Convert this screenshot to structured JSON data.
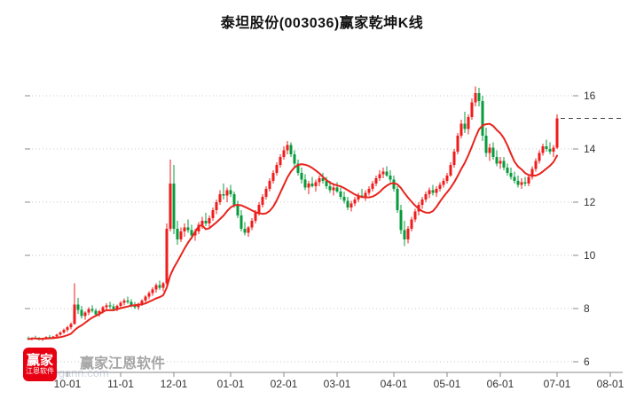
{
  "title": "泰坦股份(003036)赢家乾坤K线",
  "watermark": {
    "brand": "赢家江恩软件",
    "logo_line1": "赢家",
    "logo_line2": "江恩软件",
    "faint_text": "550gann.com"
  },
  "chart_data": {
    "type": "candlestick",
    "title": "泰坦股份(003036)赢家乾坤K线",
    "x_labels": [
      "10-01",
      "11-01",
      "12-01",
      "01-01",
      "02-01",
      "03-01",
      "04-01",
      "05-01",
      "06-01",
      "07-01",
      "08-01"
    ],
    "x_label_indices": [
      11,
      26,
      41,
      57,
      72,
      87,
      103,
      118,
      133,
      149,
      164
    ],
    "y_ticks": [
      6,
      8,
      10,
      12,
      14,
      16
    ],
    "ylim": [
      6,
      16
    ],
    "grid": true,
    "ref_line": 15.15,
    "ma_window": 10,
    "colors": {
      "up": "#f01b1b",
      "down": "#079b3c",
      "ma": "#e8241d",
      "grid": "#c8c8c8",
      "axis": "#8a8a8a",
      "ref": "#444444",
      "label": "#333333"
    },
    "candles": [
      [
        6.88,
        6.95,
        6.82,
        6.85
      ],
      [
        6.85,
        6.92,
        6.8,
        6.9
      ],
      [
        6.9,
        6.98,
        6.85,
        6.87
      ],
      [
        6.87,
        6.93,
        6.81,
        6.83
      ],
      [
        6.83,
        6.9,
        6.78,
        6.88
      ],
      [
        6.88,
        6.96,
        6.84,
        6.93
      ],
      [
        6.93,
        7.0,
        6.88,
        6.9
      ],
      [
        6.9,
        6.97,
        6.85,
        6.95
      ],
      [
        6.95,
        7.05,
        6.9,
        7.02
      ],
      [
        7.02,
        7.15,
        6.98,
        7.1
      ],
      [
        7.1,
        7.25,
        7.05,
        7.2
      ],
      [
        7.2,
        7.35,
        7.12,
        7.3
      ],
      [
        7.3,
        7.48,
        7.22,
        7.42
      ],
      [
        7.42,
        8.95,
        7.4,
        8.15
      ],
      [
        8.15,
        8.4,
        7.8,
        7.95
      ],
      [
        7.95,
        8.1,
        7.62,
        7.72
      ],
      [
        7.72,
        7.9,
        7.58,
        7.85
      ],
      [
        7.85,
        8.05,
        7.75,
        7.98
      ],
      [
        7.98,
        8.12,
        7.85,
        7.92
      ],
      [
        7.92,
        8.0,
        7.7,
        7.78
      ],
      [
        7.78,
        7.95,
        7.7,
        7.9
      ],
      [
        7.9,
        8.1,
        7.82,
        8.05
      ],
      [
        8.05,
        8.2,
        7.95,
        8.12
      ],
      [
        8.12,
        8.25,
        8.0,
        8.08
      ],
      [
        8.08,
        8.18,
        7.92,
        7.98
      ],
      [
        7.98,
        8.15,
        7.9,
        8.1
      ],
      [
        8.1,
        8.28,
        8.02,
        8.22
      ],
      [
        8.22,
        8.38,
        8.12,
        8.3
      ],
      [
        8.3,
        8.45,
        8.18,
        8.25
      ],
      [
        8.25,
        8.35,
        8.05,
        8.12
      ],
      [
        8.12,
        8.25,
        7.98,
        8.05
      ],
      [
        8.05,
        8.22,
        7.95,
        8.18
      ],
      [
        8.18,
        8.35,
        8.1,
        8.3
      ],
      [
        8.3,
        8.5,
        8.22,
        8.45
      ],
      [
        8.45,
        8.65,
        8.35,
        8.58
      ],
      [
        8.58,
        8.8,
        8.48,
        8.72
      ],
      [
        8.72,
        8.95,
        8.6,
        8.88
      ],
      [
        8.88,
        9.05,
        8.7,
        8.78
      ],
      [
        8.78,
        9.0,
        8.65,
        8.95
      ],
      [
        8.95,
        11.2,
        8.85,
        11.0
      ],
      [
        11.0,
        13.6,
        10.9,
        12.7
      ],
      [
        12.7,
        13.4,
        10.8,
        11.0
      ],
      [
        11.0,
        11.3,
        10.4,
        10.6
      ],
      [
        10.6,
        11.05,
        10.5,
        10.9
      ],
      [
        10.9,
        11.2,
        10.7,
        11.05
      ],
      [
        11.05,
        11.35,
        10.85,
        10.95
      ],
      [
        10.95,
        11.15,
        10.6,
        10.75
      ],
      [
        10.75,
        11.0,
        10.55,
        10.9
      ],
      [
        10.9,
        11.25,
        10.8,
        11.15
      ],
      [
        11.15,
        11.45,
        11.0,
        11.3
      ],
      [
        11.3,
        11.6,
        11.1,
        11.2
      ],
      [
        11.2,
        11.5,
        11.05,
        11.4
      ],
      [
        11.4,
        11.8,
        11.3,
        11.7
      ],
      [
        11.7,
        12.1,
        11.55,
        12.0
      ],
      [
        12.0,
        12.45,
        11.9,
        12.3
      ],
      [
        12.3,
        12.7,
        12.1,
        12.25
      ],
      [
        12.25,
        12.55,
        12.0,
        12.45
      ],
      [
        12.45,
        12.65,
        12.2,
        12.3
      ],
      [
        12.3,
        12.4,
        11.8,
        11.9
      ],
      [
        11.9,
        12.05,
        11.4,
        11.5
      ],
      [
        11.5,
        11.7,
        10.9,
        11.0
      ],
      [
        11.0,
        11.25,
        10.75,
        10.85
      ],
      [
        10.85,
        11.1,
        10.7,
        11.05
      ],
      [
        11.05,
        11.4,
        10.95,
        11.3
      ],
      [
        11.3,
        11.7,
        11.2,
        11.6
      ],
      [
        11.6,
        12.0,
        11.5,
        11.9
      ],
      [
        11.9,
        12.3,
        11.8,
        12.2
      ],
      [
        12.2,
        12.6,
        12.1,
        12.5
      ],
      [
        12.5,
        12.9,
        12.4,
        12.8
      ],
      [
        12.8,
        13.2,
        12.7,
        13.1
      ],
      [
        13.1,
        13.5,
        13.0,
        13.4
      ],
      [
        13.4,
        13.8,
        13.3,
        13.7
      ],
      [
        13.7,
        14.1,
        13.6,
        13.95
      ],
      [
        13.95,
        14.3,
        13.8,
        14.15
      ],
      [
        14.15,
        14.25,
        13.7,
        13.8
      ],
      [
        13.8,
        13.95,
        13.3,
        13.45
      ],
      [
        13.45,
        13.6,
        13.0,
        13.1
      ],
      [
        13.1,
        13.3,
        12.7,
        12.85
      ],
      [
        12.85,
        13.05,
        12.45,
        12.55
      ],
      [
        12.55,
        12.8,
        12.3,
        12.7
      ],
      [
        12.7,
        12.95,
        12.55,
        12.6
      ],
      [
        12.6,
        12.85,
        12.4,
        12.75
      ],
      [
        12.75,
        13.0,
        12.6,
        12.9
      ],
      [
        12.9,
        13.1,
        12.7,
        12.8
      ],
      [
        12.8,
        12.95,
        12.5,
        12.6
      ],
      [
        12.6,
        12.8,
        12.35,
        12.45
      ],
      [
        12.45,
        12.65,
        12.25,
        12.55
      ],
      [
        12.55,
        12.75,
        12.35,
        12.4
      ],
      [
        12.4,
        12.55,
        12.1,
        12.2
      ],
      [
        12.2,
        12.4,
        11.95,
        12.05
      ],
      [
        12.05,
        12.2,
        11.7,
        11.8
      ],
      [
        11.8,
        12.05,
        11.65,
        11.95
      ],
      [
        11.95,
        12.2,
        11.85,
        12.1
      ],
      [
        12.1,
        12.35,
        12.0,
        12.25
      ],
      [
        12.25,
        12.5,
        12.15,
        12.2
      ],
      [
        12.2,
        12.45,
        12.05,
        12.35
      ],
      [
        12.35,
        12.6,
        12.25,
        12.5
      ],
      [
        12.5,
        12.8,
        12.4,
        12.7
      ],
      [
        12.7,
        13.0,
        12.6,
        12.9
      ],
      [
        12.9,
        13.2,
        12.8,
        13.05
      ],
      [
        13.05,
        13.3,
        12.9,
        13.15
      ],
      [
        13.15,
        13.35,
        12.95,
        13.0
      ],
      [
        13.0,
        13.2,
        12.75,
        12.85
      ],
      [
        12.85,
        13.0,
        12.4,
        12.5
      ],
      [
        12.5,
        12.6,
        11.6,
        11.7
      ],
      [
        11.7,
        11.9,
        10.8,
        10.95
      ],
      [
        10.95,
        11.3,
        10.35,
        10.6
      ],
      [
        10.6,
        11.1,
        10.45,
        11.0
      ],
      [
        11.0,
        11.45,
        10.9,
        11.35
      ],
      [
        11.35,
        11.75,
        11.25,
        11.65
      ],
      [
        11.65,
        12.0,
        11.5,
        11.9
      ],
      [
        11.9,
        12.2,
        11.75,
        12.1
      ],
      [
        12.1,
        12.4,
        12.0,
        12.3
      ],
      [
        12.3,
        12.55,
        12.15,
        12.45
      ],
      [
        12.45,
        12.65,
        12.25,
        12.35
      ],
      [
        12.35,
        12.6,
        12.2,
        12.5
      ],
      [
        12.5,
        12.75,
        12.4,
        12.65
      ],
      [
        12.65,
        12.9,
        12.55,
        12.8
      ],
      [
        12.8,
        13.1,
        12.7,
        13.0
      ],
      [
        13.0,
        13.5,
        12.95,
        13.4
      ],
      [
        13.4,
        14.0,
        13.3,
        13.9
      ],
      [
        13.9,
        14.6,
        13.8,
        14.5
      ],
      [
        14.5,
        15.1,
        14.4,
        14.95
      ],
      [
        14.95,
        15.4,
        14.6,
        14.75
      ],
      [
        14.75,
        15.3,
        14.55,
        15.2
      ],
      [
        15.2,
        15.9,
        15.1,
        15.75
      ],
      [
        15.75,
        16.35,
        15.6,
        16.1
      ],
      [
        16.1,
        16.3,
        15.6,
        15.8
      ],
      [
        15.8,
        16.0,
        14.3,
        14.5
      ],
      [
        14.5,
        14.8,
        13.7,
        13.85
      ],
      [
        13.85,
        14.2,
        13.55,
        14.05
      ],
      [
        14.05,
        14.25,
        13.6,
        13.7
      ],
      [
        13.7,
        13.95,
        13.35,
        13.45
      ],
      [
        13.45,
        13.7,
        13.25,
        13.55
      ],
      [
        13.55,
        13.7,
        13.2,
        13.3
      ],
      [
        13.3,
        13.45,
        13.0,
        13.1
      ],
      [
        13.1,
        13.3,
        12.85,
        12.95
      ],
      [
        12.95,
        13.15,
        12.7,
        12.8
      ],
      [
        12.8,
        13.0,
        12.55,
        12.65
      ],
      [
        12.65,
        12.9,
        12.5,
        12.75
      ],
      [
        12.75,
        12.95,
        12.6,
        12.7
      ],
      [
        12.7,
        13.05,
        12.6,
        12.95
      ],
      [
        12.95,
        13.35,
        12.85,
        13.25
      ],
      [
        13.25,
        13.65,
        13.15,
        13.55
      ],
      [
        13.55,
        13.95,
        13.45,
        13.85
      ],
      [
        13.85,
        14.2,
        13.75,
        14.1
      ],
      [
        14.1,
        14.35,
        13.9,
        14.0
      ],
      [
        14.0,
        14.25,
        13.8,
        13.9
      ],
      [
        13.9,
        14.15,
        13.7,
        14.05
      ],
      [
        14.05,
        15.3,
        14.0,
        15.15
      ]
    ]
  }
}
